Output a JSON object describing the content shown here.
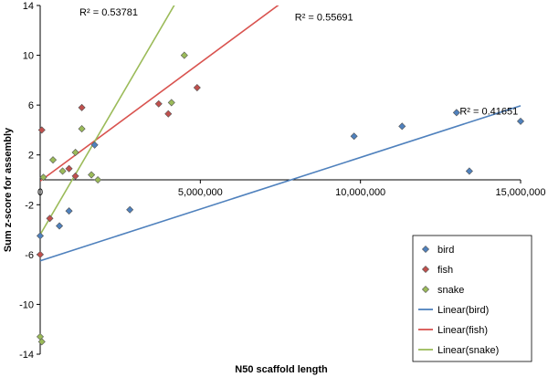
{
  "chart_data": {
    "type": "scatter",
    "xlabel": "N50 scaffold length",
    "ylabel": "Sum z-score for assembly",
    "xlim": [
      0,
      15000000
    ],
    "ylim": [
      -14,
      14
    ],
    "x_ticks": [
      0,
      5000000,
      10000000,
      15000000
    ],
    "x_tick_labels": [
      "0",
      "5,000,000",
      "10,000,000",
      "15,000,000"
    ],
    "y_ticks": [
      -14,
      -10,
      -6,
      -2,
      2,
      6,
      10,
      14
    ],
    "y_tick_labels": [
      "-14",
      "-10",
      "-6",
      "-2",
      "2",
      "6",
      "10",
      "14"
    ],
    "grid": false,
    "legend_position": "bottom-right",
    "series": [
      {
        "name": "bird",
        "color": "#4f81bd",
        "marker": "diamond",
        "points": [
          [
            0,
            -4.5
          ],
          [
            600000,
            -3.7
          ],
          [
            900000,
            -2.5
          ],
          [
            1700000,
            2.8
          ],
          [
            2800000,
            -2.4
          ],
          [
            9800000,
            3.5
          ],
          [
            11300000,
            4.3
          ],
          [
            13000000,
            5.4
          ],
          [
            13400000,
            0.7
          ],
          [
            15000000,
            4.7
          ]
        ]
      },
      {
        "name": "fish",
        "color": "#c0504d",
        "marker": "diamond",
        "points": [
          [
            0,
            -6.0
          ],
          [
            50000,
            4.0
          ],
          [
            300000,
            -3.1
          ],
          [
            900000,
            0.9
          ],
          [
            1100000,
            0.3
          ],
          [
            1300000,
            5.8
          ],
          [
            3700000,
            6.1
          ],
          [
            4000000,
            5.3
          ],
          [
            4900000,
            7.4
          ]
        ]
      },
      {
        "name": "snake",
        "color": "#9bbb59",
        "marker": "diamond",
        "points": [
          [
            0,
            -12.6
          ],
          [
            50000,
            -13.0
          ],
          [
            100000,
            0.2
          ],
          [
            400000,
            1.6
          ],
          [
            700000,
            0.7
          ],
          [
            1100000,
            2.2
          ],
          [
            1300000,
            4.1
          ],
          [
            1600000,
            0.4
          ],
          [
            1800000,
            0.0
          ],
          [
            4100000,
            6.2
          ],
          [
            4500000,
            10.0
          ]
        ]
      }
    ],
    "trendlines": [
      {
        "name": "Linear(bird)",
        "color": "#4f81bd",
        "slope": 8.3e-07,
        "intercept": -6.5,
        "r2_label": "R² = 0.41651"
      },
      {
        "name": "Linear(fish)",
        "color": "#d9534f",
        "slope": 1.9e-06,
        "intercept": -0.1,
        "r2_label": "R² = 0.55691"
      },
      {
        "name": "Linear(snake)",
        "color": "#9bbb59",
        "slope": 4.4e-06,
        "intercept": -4.4,
        "r2_label": "R² = 0.53781"
      }
    ],
    "legend": [
      "bird",
      "fish",
      "snake",
      "Linear(bird)",
      "Linear(fish)",
      "Linear(snake)"
    ]
  }
}
